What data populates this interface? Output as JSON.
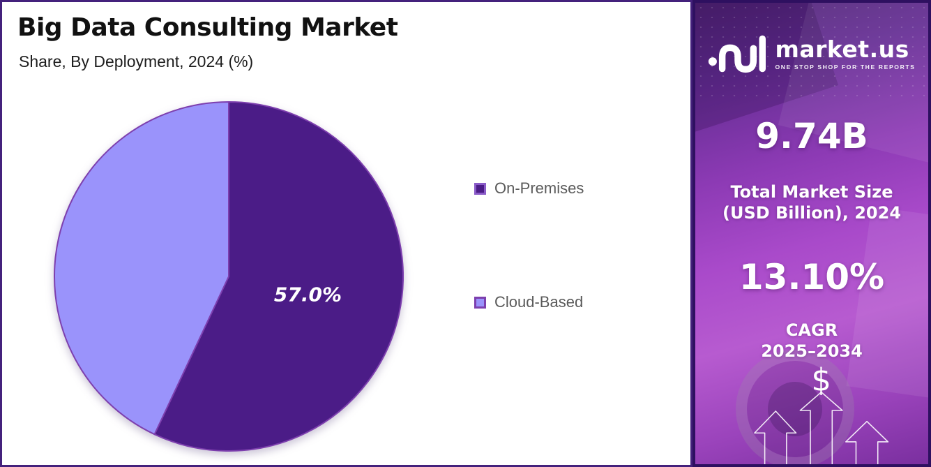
{
  "header": {
    "title": "Big Data Consulting Market",
    "subtitle": "Share, By Deployment, 2024 (%)"
  },
  "chart_data": {
    "type": "pie",
    "title": "Big Data Consulting Market",
    "subtitle": "Share, By Deployment, 2024 (%)",
    "categories": [
      "On-Premises",
      "Cloud-Based"
    ],
    "values": [
      57.0,
      43.0
    ],
    "unit": "%",
    "colors": [
      "#4B1C87",
      "#9A93FB"
    ],
    "data_label": "57.0%",
    "legend_position": "right",
    "start_angle_deg": 0,
    "direction": "clockwise"
  },
  "legend": {
    "items": [
      {
        "label": "On-Premises",
        "color": "#4B1C87"
      },
      {
        "label": "Cloud-Based",
        "color": "#9A93FB"
      }
    ]
  },
  "sidebar": {
    "logo": {
      "brand": "market.us",
      "tagline": "ONE STOP SHOP FOR THE REPORTS"
    },
    "market_size": {
      "value": "9.74B",
      "label_line1": "Total Market Size",
      "label_line2": "(USD Billion), 2024"
    },
    "cagr": {
      "value": "13.10%",
      "label_line1": "CAGR",
      "label_line2": "2025–2034"
    },
    "dollar_sign": "$"
  }
}
